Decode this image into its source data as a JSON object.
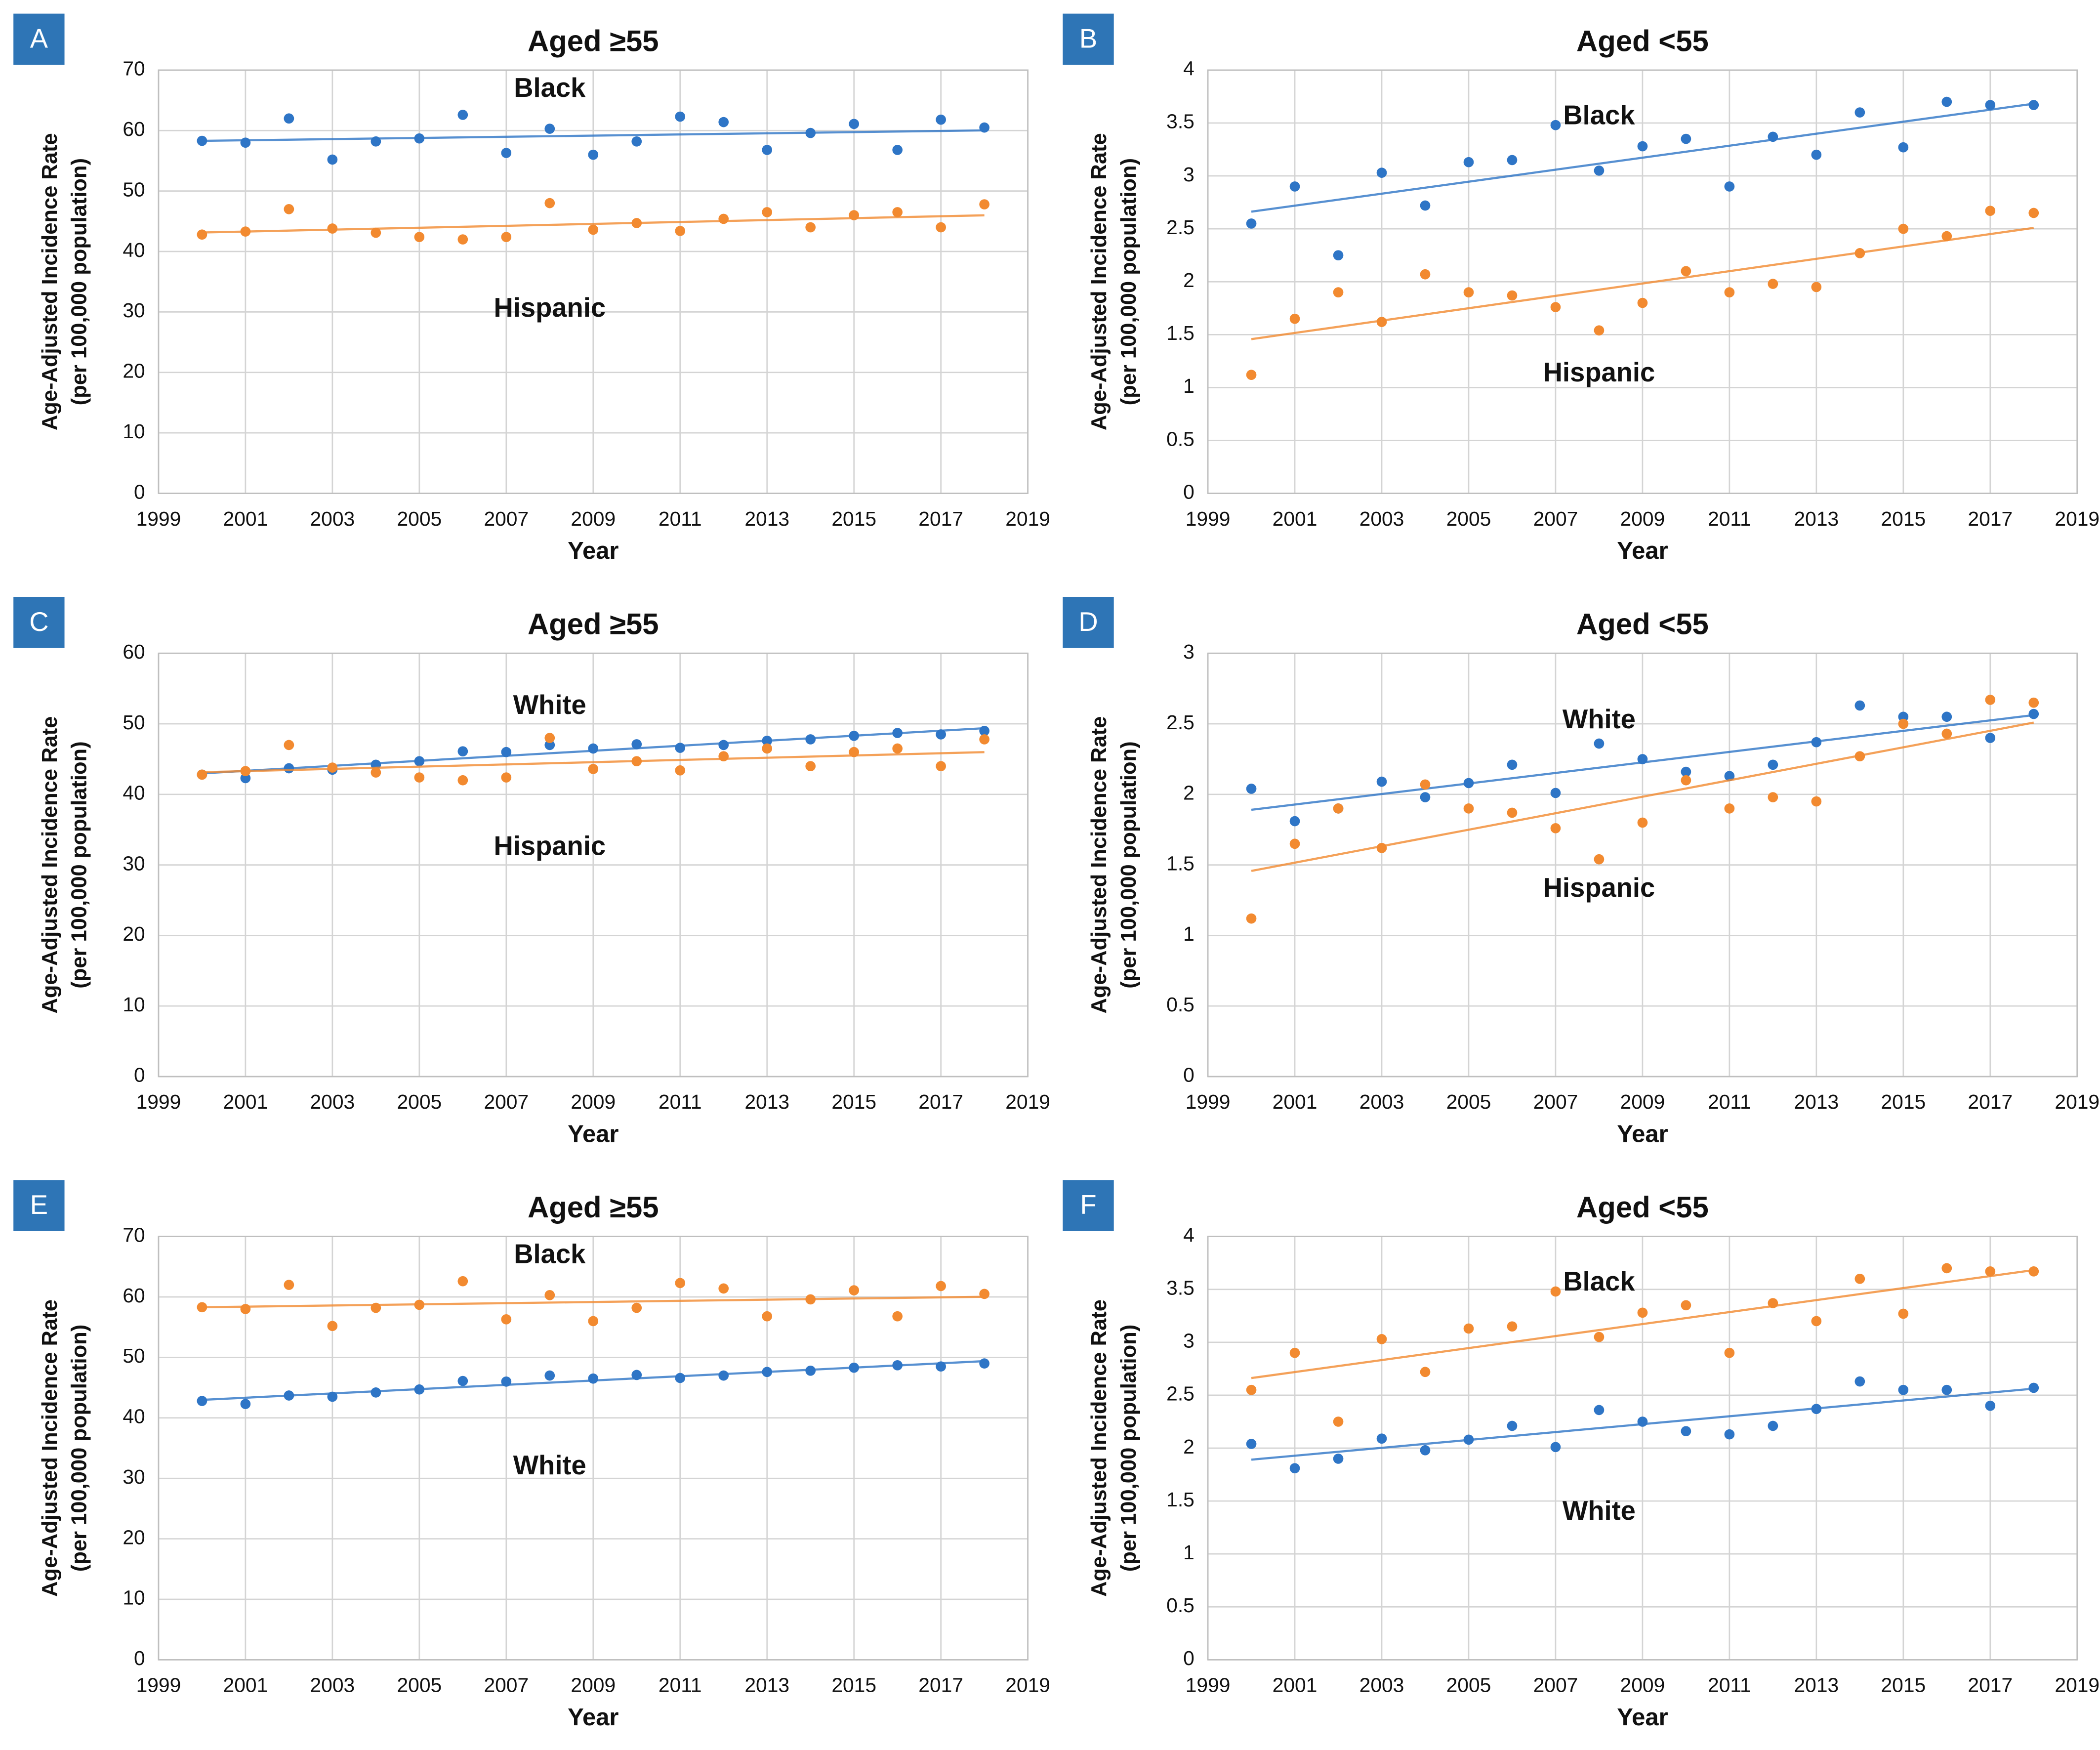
{
  "chart_data": [
    {
      "type": "scatter",
      "panel": "A",
      "title": "Aged ≥55",
      "xlabel": "Year",
      "ylabel": [
        "Age-Adjusted Incidence Rate",
        "(per 100,000 population)"
      ],
      "x": [
        2000,
        2001,
        2002,
        2003,
        2004,
        2005,
        2006,
        2007,
        2008,
        2009,
        2010,
        2011,
        2012,
        2013,
        2014,
        2015,
        2016,
        2017,
        2018
      ],
      "series": [
        {
          "name": "Black",
          "color": "#2e75c6",
          "values": [
            58.3,
            58,
            62,
            55.2,
            58.2,
            58.7,
            62.6,
            56.3,
            60.3,
            56,
            58.2,
            62.3,
            61.4,
            56.8,
            59.6,
            61.1,
            56.8,
            61.8,
            60.5
          ]
        },
        {
          "name": "Hispanic",
          "color": "#f28a30",
          "values": [
            42.8,
            43.3,
            47,
            43.8,
            43.1,
            42.4,
            42,
            42.4,
            48,
            43.6,
            44.7,
            43.4,
            45.4,
            46.5,
            44,
            46,
            46.5,
            44,
            47.8
          ]
        }
      ],
      "trendline": "linear",
      "grid": true,
      "xlim": [
        1999,
        2019
      ],
      "xticks": [
        1999,
        2001,
        2003,
        2005,
        2007,
        2009,
        2011,
        2013,
        2015,
        2017,
        2019
      ],
      "ylim": [
        0,
        70
      ],
      "yticks": [
        0,
        10,
        20,
        30,
        40,
        50,
        60,
        70
      ]
    },
    {
      "type": "scatter",
      "panel": "B",
      "title": "Aged <55",
      "xlabel": "Year",
      "ylabel": [
        "Age-Adjusted Incidence Rate",
        "(per 100,000 population)"
      ],
      "x": [
        2000,
        2001,
        2002,
        2003,
        2004,
        2005,
        2006,
        2007,
        2008,
        2009,
        2010,
        2011,
        2012,
        2013,
        2014,
        2015,
        2016,
        2017,
        2018
      ],
      "series": [
        {
          "name": "Black",
          "color": "#2e75c6",
          "values": [
            2.55,
            2.9,
            2.25,
            3.03,
            2.72,
            3.13,
            3.15,
            3.48,
            3.05,
            3.28,
            3.35,
            2.9,
            3.37,
            3.2,
            3.6,
            3.27,
            3.7,
            3.67,
            3.67
          ]
        },
        {
          "name": "Hispanic",
          "color": "#f28a30",
          "values": [
            1.12,
            1.65,
            1.9,
            1.62,
            2.07,
            1.9,
            1.87,
            1.76,
            1.54,
            1.8,
            2.1,
            1.9,
            1.98,
            1.95,
            2.27,
            2.5,
            2.43,
            2.67,
            2.65
          ]
        }
      ],
      "trendline": "linear",
      "grid": true,
      "xlim": [
        1999,
        2019
      ],
      "xticks": [
        1999,
        2001,
        2003,
        2005,
        2007,
        2009,
        2011,
        2013,
        2015,
        2017,
        2019
      ],
      "ylim": [
        0,
        4
      ],
      "yticks": [
        0,
        0.5,
        1,
        1.5,
        2,
        2.5,
        3,
        3.5,
        4
      ]
    },
    {
      "type": "scatter",
      "panel": "C",
      "title": "Aged ≥55",
      "xlabel": "Year",
      "ylabel": [
        "Age-Adjusted Incidence Rate",
        "(per 100,000 population)"
      ],
      "x": [
        2000,
        2001,
        2002,
        2003,
        2004,
        2005,
        2006,
        2007,
        2008,
        2009,
        2010,
        2011,
        2012,
        2013,
        2014,
        2015,
        2016,
        2017,
        2018
      ],
      "series": [
        {
          "name": "White",
          "color": "#2e75c6",
          "values": [
            42.8,
            42.3,
            43.7,
            43.5,
            44.2,
            44.7,
            46.1,
            46,
            47,
            46.5,
            47.1,
            46.6,
            47,
            47.6,
            47.8,
            48.3,
            48.7,
            48.5,
            49
          ]
        },
        {
          "name": "Hispanic",
          "color": "#f28a30",
          "values": [
            42.8,
            43.3,
            47,
            43.8,
            43.1,
            42.4,
            42,
            42.4,
            48,
            43.6,
            44.7,
            43.4,
            45.4,
            46.5,
            44,
            46,
            46.5,
            44,
            47.8
          ]
        }
      ],
      "trendline": "linear",
      "grid": true,
      "xlim": [
        1999,
        2019
      ],
      "xticks": [
        1999,
        2001,
        2003,
        2005,
        2007,
        2009,
        2011,
        2013,
        2015,
        2017,
        2019
      ],
      "ylim": [
        0,
        60
      ],
      "yticks": [
        0,
        10,
        20,
        30,
        40,
        50,
        60
      ]
    },
    {
      "type": "scatter",
      "panel": "D",
      "title": "Aged <55",
      "xlabel": "Year",
      "ylabel": [
        "Age-Adjusted Incidence Rate",
        "(per 100,000 population)"
      ],
      "x": [
        2000,
        2001,
        2002,
        2003,
        2004,
        2005,
        2006,
        2007,
        2008,
        2009,
        2010,
        2011,
        2012,
        2013,
        2014,
        2015,
        2016,
        2017,
        2018
      ],
      "series": [
        {
          "name": "White",
          "color": "#2e75c6",
          "values": [
            2.04,
            1.81,
            1.9,
            2.09,
            1.98,
            2.08,
            2.21,
            2.01,
            2.36,
            2.25,
            2.16,
            2.13,
            2.21,
            2.37,
            2.63,
            2.55,
            2.55,
            2.4,
            2.57
          ]
        },
        {
          "name": "Hispanic",
          "color": "#f28a30",
          "values": [
            1.12,
            1.65,
            1.9,
            1.62,
            2.07,
            1.9,
            1.87,
            1.76,
            1.54,
            1.8,
            2.1,
            1.9,
            1.98,
            1.95,
            2.27,
            2.5,
            2.43,
            2.67,
            2.65
          ]
        }
      ],
      "trendline": "linear",
      "grid": true,
      "xlim": [
        1999,
        2019
      ],
      "xticks": [
        1999,
        2001,
        2003,
        2005,
        2007,
        2009,
        2011,
        2013,
        2015,
        2017,
        2019
      ],
      "ylim": [
        0,
        3
      ],
      "yticks": [
        0,
        0.5,
        1,
        1.5,
        2,
        2.5,
        3
      ]
    },
    {
      "type": "scatter",
      "panel": "E",
      "title": "Aged ≥55",
      "xlabel": "Year",
      "ylabel": [
        "Age-Adjusted Incidence Rate",
        "(per 100,000 population)"
      ],
      "x": [
        2000,
        2001,
        2002,
        2003,
        2004,
        2005,
        2006,
        2007,
        2008,
        2009,
        2010,
        2011,
        2012,
        2013,
        2014,
        2015,
        2016,
        2017,
        2018
      ],
      "series": [
        {
          "name": "Black",
          "color": "#f28a30",
          "values": [
            58.3,
            58,
            62,
            55.2,
            58.2,
            58.7,
            62.6,
            56.3,
            60.3,
            56,
            58.2,
            62.3,
            61.4,
            56.8,
            59.6,
            61.1,
            56.8,
            61.8,
            60.5
          ]
        },
        {
          "name": "White",
          "color": "#2e75c6",
          "values": [
            42.8,
            42.3,
            43.7,
            43.5,
            44.2,
            44.7,
            46.1,
            46,
            47,
            46.5,
            47.1,
            46.6,
            47,
            47.6,
            47.8,
            48.3,
            48.7,
            48.5,
            49
          ]
        }
      ],
      "trendline": "linear",
      "grid": true,
      "xlim": [
        1999,
        2019
      ],
      "xticks": [
        1999,
        2001,
        2003,
        2005,
        2007,
        2009,
        2011,
        2013,
        2015,
        2017,
        2019
      ],
      "ylim": [
        0,
        70
      ],
      "yticks": [
        0,
        10,
        20,
        30,
        40,
        50,
        60,
        70
      ]
    },
    {
      "type": "scatter",
      "panel": "F",
      "title": "Aged <55",
      "xlabel": "Year",
      "ylabel": [
        "Age-Adjusted Incidence Rate",
        "(per 100,000 population)"
      ],
      "x": [
        2000,
        2001,
        2002,
        2003,
        2004,
        2005,
        2006,
        2007,
        2008,
        2009,
        2010,
        2011,
        2012,
        2013,
        2014,
        2015,
        2016,
        2017,
        2018
      ],
      "series": [
        {
          "name": "Black",
          "color": "#f28a30",
          "values": [
            2.55,
            2.9,
            2.25,
            3.03,
            2.72,
            3.13,
            3.15,
            3.48,
            3.05,
            3.28,
            3.35,
            2.9,
            3.37,
            3.2,
            3.6,
            3.27,
            3.7,
            3.67,
            3.67
          ]
        },
        {
          "name": "White",
          "color": "#2e75c6",
          "values": [
            2.04,
            1.81,
            1.9,
            2.09,
            1.98,
            2.08,
            2.21,
            2.01,
            2.36,
            2.25,
            2.16,
            2.13,
            2.21,
            2.37,
            2.63,
            2.55,
            2.55,
            2.4,
            2.57
          ]
        }
      ],
      "trendline": "linear",
      "grid": true,
      "xlim": [
        1999,
        2019
      ],
      "xticks": [
        1999,
        2001,
        2003,
        2005,
        2007,
        2009,
        2011,
        2013,
        2015,
        2017,
        2019
      ],
      "ylim": [
        0,
        4
      ],
      "yticks": [
        0,
        0.5,
        1,
        1.5,
        2,
        2.5,
        3,
        3.5,
        4
      ]
    }
  ]
}
